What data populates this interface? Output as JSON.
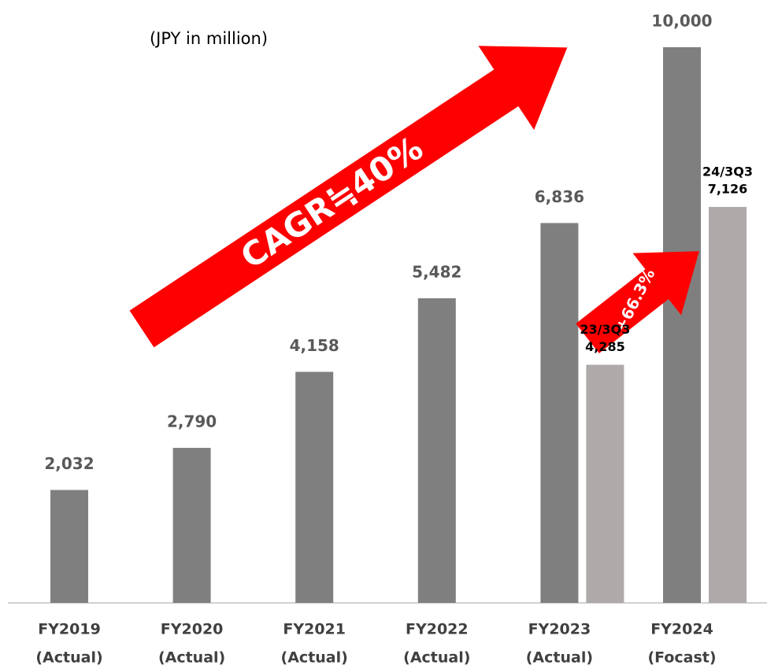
{
  "chart_data": {
    "type": "bar",
    "unit_note": "(JPY in million)",
    "categories": [
      "FY2019",
      "FY2020",
      "FY2021",
      "FY2022",
      "FY2023",
      "FY2024"
    ],
    "category_sublabels": [
      "(Actual)",
      "(Actual)",
      "(Actual)",
      "(Actual)",
      "(Actual)",
      "(Focast)"
    ],
    "series": [
      {
        "color": "#7f7f7f",
        "values": [
          2032,
          2790,
          4158,
          5482,
          6836,
          10000
        ],
        "value_labels": [
          "2,032",
          "2,790",
          "4,158",
          "5,482",
          "6,836",
          "10,000"
        ]
      },
      {
        "color": "#aeaaaa",
        "values": [
          null,
          null,
          null,
          null,
          4285,
          7126
        ],
        "value_labels": [
          null,
          null,
          null,
          null,
          "4,285",
          "7,126"
        ],
        "period_labels": [
          null,
          null,
          null,
          null,
          "23/3Q3",
          "24/3Q3"
        ]
      }
    ],
    "annotations": [
      "CAGR≒40%",
      "+66.3%"
    ]
  }
}
